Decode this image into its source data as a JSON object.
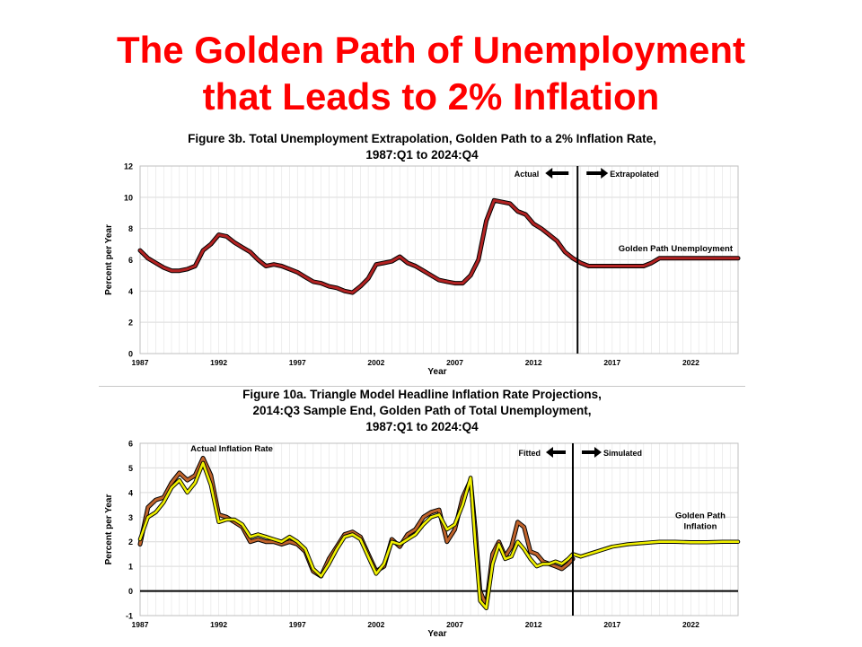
{
  "slide": {
    "title_line1": "The Golden Path of Unemployment",
    "title_line2": "that Leads to 2% Inflation"
  },
  "colors": {
    "title": "#ff0000",
    "unemployment_line": "#b22222",
    "actual_inflation": "#c0632b",
    "simulated_inflation": "#f0f000"
  },
  "chart_data": [
    {
      "type": "line",
      "title_line1": "Figure 3b. Total Unemployment Extrapolation, Golden Path to a 2% Inflation Rate,",
      "title_line2": "1987:Q1 to 2024:Q4",
      "xlabel": "Year",
      "ylabel": "Percent per Year",
      "xlim": [
        1987,
        2025
      ],
      "ylim": [
        0,
        12
      ],
      "x_ticks": [
        1987,
        1992,
        1997,
        2002,
        2007,
        2012,
        2017,
        2022
      ],
      "y_ticks": [
        0,
        2,
        4,
        6,
        8,
        10,
        12
      ],
      "grid": true,
      "divider_x": 2014.8,
      "left_label": "Actual",
      "right_label": "Extrapolated",
      "annotation": "Golden Path Unemployment",
      "series": [
        {
          "x": [
            1987.0,
            1987.5,
            1988.0,
            1988.5,
            1989.0,
            1989.5,
            1990.0,
            1990.5,
            1991.0,
            1991.5,
            1992.0,
            1992.5,
            1993.0,
            1993.5,
            1994.0,
            1994.5,
            1995.0,
            1995.5,
            1996.0,
            1996.5,
            1997.0,
            1997.5,
            1998.0,
            1998.5,
            1999.0,
            1999.5,
            2000.0,
            2000.5,
            2001.0,
            2001.5,
            2002.0,
            2002.5,
            2003.0,
            2003.5,
            2004.0,
            2004.5,
            2005.0,
            2005.5,
            2006.0,
            2006.5,
            2007.0,
            2007.5,
            2008.0,
            2008.5,
            2009.0,
            2009.5,
            2010.0,
            2010.5,
            2011.0,
            2011.5,
            2012.0,
            2012.5,
            2013.0,
            2013.5,
            2014.0,
            2014.5,
            2015.0,
            2015.5,
            2016.0,
            2017.0,
            2018.0,
            2019.0,
            2019.5,
            2020.0,
            2020.5,
            2021.0,
            2022.0,
            2023.0,
            2024.0,
            2025.0
          ],
          "y": [
            6.6,
            6.1,
            5.8,
            5.5,
            5.3,
            5.3,
            5.4,
            5.6,
            6.6,
            7.0,
            7.6,
            7.5,
            7.1,
            6.8,
            6.5,
            6.0,
            5.6,
            5.7,
            5.6,
            5.4,
            5.2,
            4.9,
            4.6,
            4.5,
            4.3,
            4.2,
            4.0,
            3.9,
            4.3,
            4.8,
            5.7,
            5.8,
            5.9,
            6.2,
            5.8,
            5.6,
            5.3,
            5.0,
            4.7,
            4.6,
            4.5,
            4.5,
            5.0,
            6.0,
            8.5,
            9.8,
            9.7,
            9.6,
            9.1,
            8.9,
            8.3,
            8.0,
            7.6,
            7.2,
            6.5,
            6.1,
            5.8,
            5.6,
            5.6,
            5.6,
            5.6,
            5.6,
            5.8,
            6.1,
            6.1,
            6.1,
            6.1,
            6.1,
            6.1,
            6.1
          ]
        }
      ]
    },
    {
      "type": "line",
      "title_line1": "Figure 10a. Triangle Model Headline Inflation Rate Projections,",
      "title_line2": "2014:Q3 Sample End, Golden Path of Total Unemployment,",
      "title_line3": "1987:Q1 to 2024:Q4",
      "xlabel": "Year",
      "ylabel": "Percent per Year",
      "xlim": [
        1987,
        2025
      ],
      "ylim": [
        -1,
        6
      ],
      "x_ticks": [
        1987,
        1992,
        1997,
        2002,
        2007,
        2012,
        2017,
        2022
      ],
      "y_ticks": [
        -1,
        0,
        1,
        2,
        3,
        4,
        5,
        6
      ],
      "grid": true,
      "divider_x": 2014.5,
      "left_label": "Fitted",
      "right_label": "Simulated",
      "annotation_actual": "Actual Inflation Rate",
      "annotation_golden_line1": "Golden Path",
      "annotation_golden_line2": "Inflation",
      "series": [
        {
          "x": [
            1987.0,
            1987.5,
            1988.0,
            1988.5,
            1989.0,
            1989.5,
            1990.0,
            1990.5,
            1991.0,
            1991.5,
            1992.0,
            1992.5,
            1993.0,
            1993.5,
            1994.0,
            1994.5,
            1995.0,
            1995.5,
            1996.0,
            1996.5,
            1997.0,
            1997.5,
            1998.0,
            1998.5,
            1999.0,
            1999.5,
            2000.0,
            2000.5,
            2001.0,
            2001.5,
            2002.0,
            2002.5,
            2003.0,
            2003.5,
            2004.0,
            2004.5,
            2005.0,
            2005.5,
            2006.0,
            2006.5,
            2007.0,
            2007.5,
            2008.0,
            2008.3,
            2008.6,
            2009.0,
            2009.4,
            2009.8,
            2010.2,
            2010.6,
            2011.0,
            2011.4,
            2011.8,
            2012.2,
            2012.6,
            2013.0,
            2013.4,
            2013.8,
            2014.2,
            2014.5
          ],
          "y": [
            1.9,
            3.4,
            3.7,
            3.8,
            4.4,
            4.8,
            4.5,
            4.7,
            5.4,
            4.7,
            3.1,
            3.0,
            2.8,
            2.6,
            2.0,
            2.1,
            2.0,
            2.0,
            1.9,
            2.0,
            1.9,
            1.6,
            0.8,
            0.6,
            1.3,
            1.8,
            2.3,
            2.4,
            2.2,
            1.5,
            0.8,
            1.0,
            2.1,
            1.8,
            2.3,
            2.5,
            3.0,
            3.2,
            3.3,
            2.0,
            2.5,
            3.8,
            4.5,
            2.5,
            0.0,
            -0.6,
            1.5,
            2.0,
            1.4,
            1.8,
            2.8,
            2.6,
            1.6,
            1.5,
            1.2,
            1.1,
            1.0,
            0.9,
            1.1,
            1.3
          ],
          "name": ""
        },
        {
          "x": [
            1987.0,
            1987.5,
            1988.0,
            1988.5,
            1989.0,
            1989.5,
            1990.0,
            1990.5,
            1991.0,
            1991.5,
            1992.0,
            1992.5,
            1993.0,
            1993.5,
            1994.0,
            1994.5,
            1995.0,
            1995.5,
            1996.0,
            1996.5,
            1997.0,
            1997.5,
            1998.0,
            1998.5,
            1999.0,
            1999.5,
            2000.0,
            2000.5,
            2001.0,
            2001.5,
            2002.0,
            2002.5,
            2003.0,
            2003.5,
            2004.0,
            2004.5,
            2005.0,
            2005.5,
            2006.0,
            2006.5,
            2007.0,
            2007.5,
            2008.0,
            2008.3,
            2008.6,
            2009.0,
            2009.4,
            2009.8,
            2010.2,
            2010.6,
            2011.0,
            2011.4,
            2011.8,
            2012.2,
            2012.6,
            2013.0,
            2013.4,
            2013.8,
            2014.2,
            2014.5,
            2015.0,
            2016.0,
            2017.0,
            2018.0,
            2019.0,
            2020.0,
            2021.0,
            2022.0,
            2023.0,
            2024.0,
            2025.0
          ],
          "y": [
            2.1,
            3.0,
            3.2,
            3.6,
            4.2,
            4.5,
            4.0,
            4.4,
            5.2,
            4.3,
            2.8,
            2.9,
            2.9,
            2.7,
            2.2,
            2.3,
            2.2,
            2.1,
            2.0,
            2.2,
            2.0,
            1.7,
            0.9,
            0.6,
            1.1,
            1.7,
            2.2,
            2.3,
            2.1,
            1.4,
            0.7,
            1.1,
            2.0,
            1.9,
            2.1,
            2.3,
            2.7,
            3.0,
            3.1,
            2.5,
            2.7,
            3.5,
            4.6,
            2.0,
            -0.4,
            -0.7,
            1.1,
            1.9,
            1.3,
            1.4,
            2.0,
            1.7,
            1.3,
            1.0,
            1.1,
            1.1,
            1.2,
            1.1,
            1.3,
            1.5,
            1.4,
            1.6,
            1.8,
            1.9,
            1.95,
            2.0,
            2.0,
            1.98,
            1.98,
            2.0,
            2.0
          ],
          "name": ""
        }
      ]
    }
  ]
}
